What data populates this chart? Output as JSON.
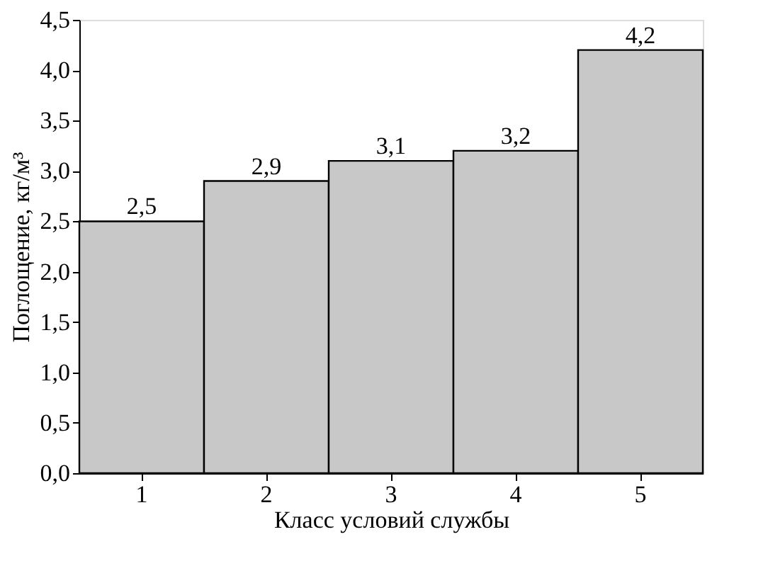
{
  "chart_data": {
    "type": "bar",
    "xlabel": "Класс условий службы",
    "ylabel": "Поглощение, кг/м³",
    "categories": [
      "1",
      "2",
      "3",
      "4",
      "5"
    ],
    "values": [
      2.5,
      2.9,
      3.1,
      3.2,
      4.2
    ],
    "value_labels": [
      "2,5",
      "2,9",
      "3,1",
      "3,2",
      "4,2"
    ],
    "color": "#c8c8c8",
    "ylim": [
      0,
      4.5
    ],
    "yticks": [
      {
        "value": 0,
        "label": "0,0"
      },
      {
        "value": 0.5,
        "label": "0,5"
      },
      {
        "value": 1,
        "label": "1,0"
      },
      {
        "value": 1.5,
        "label": "1,5"
      },
      {
        "value": 2,
        "label": "2,0"
      },
      {
        "value": 2.5,
        "label": "2,5"
      },
      {
        "value": 3,
        "label": "3,0"
      },
      {
        "value": 3.5,
        "label": "3,5"
      },
      {
        "value": 4,
        "label": "4,0"
      },
      {
        "value": 4.5,
        "label": "4,5"
      }
    ],
    "grid": false
  }
}
